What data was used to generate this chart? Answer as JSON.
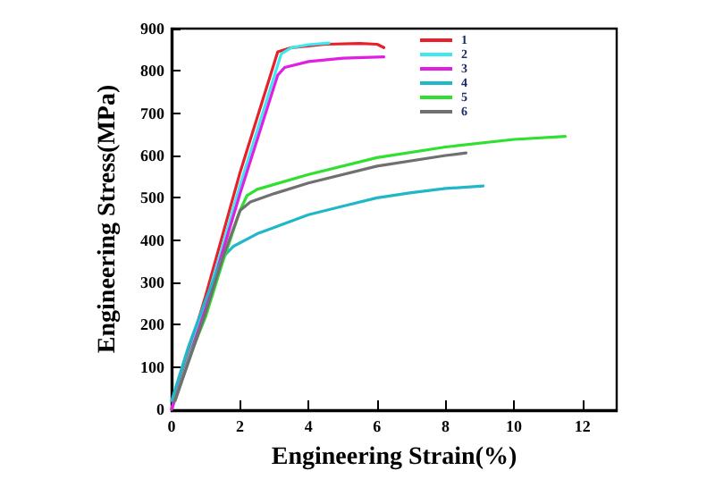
{
  "chart_data": {
    "type": "line",
    "xlabel": "Engineering Strain(%)",
    "ylabel": "Engineering Stress(MPa)",
    "xlim": [
      0,
      13
    ],
    "xticks": [
      0,
      2,
      4,
      6,
      8,
      10,
      12
    ],
    "ylim": [
      0,
      900
    ],
    "yticks": [
      0,
      100,
      200,
      300,
      400,
      500,
      600,
      700,
      800,
      900
    ],
    "grid": false,
    "legend": "top right",
    "marker": "none",
    "line_style": "solid",
    "series": [
      {
        "name": "1",
        "color": "#e8202a",
        "x": [
          0,
          1,
          2,
          3.1,
          3.5,
          4.5,
          5.5,
          6,
          6.2
        ],
        "values": [
          0,
          270,
          560,
          845,
          855,
          863,
          865,
          863,
          855
        ]
      },
      {
        "name": "2",
        "color": "#3de8f0",
        "x": [
          0,
          1,
          2,
          3.2,
          3.5,
          4,
          4.6
        ],
        "values": [
          0,
          250,
          530,
          840,
          855,
          862,
          866
        ]
      },
      {
        "name": "3",
        "color": "#e020e0",
        "x": [
          0,
          1,
          2,
          3.1,
          3.3,
          4,
          5,
          6.2
        ],
        "values": [
          0,
          240,
          510,
          790,
          808,
          822,
          830,
          833
        ]
      },
      {
        "name": "4",
        "color": "#20b8c8",
        "x": [
          0,
          0.5,
          1,
          1.5,
          1.8,
          2.5,
          4,
          5,
          6,
          7,
          8,
          9.1
        ],
        "values": [
          20,
          150,
          260,
          360,
          385,
          415,
          460,
          480,
          500,
          512,
          522,
          528
        ]
      },
      {
        "name": "5",
        "color": "#30e030",
        "x": [
          0.1,
          0.6,
          1,
          1.5,
          2,
          2.2,
          2.5,
          4,
          6,
          8,
          10,
          11.5
        ],
        "values": [
          20,
          140,
          220,
          350,
          470,
          505,
          520,
          555,
          595,
          620,
          638,
          645
        ]
      },
      {
        "name": "6",
        "color": "#707070",
        "x": [
          0.1,
          1,
          1.5,
          2,
          2.3,
          3,
          4,
          6,
          8,
          8.6
        ],
        "values": [
          20,
          230,
          360,
          470,
          490,
          510,
          535,
          575,
          600,
          606
        ]
      }
    ]
  }
}
